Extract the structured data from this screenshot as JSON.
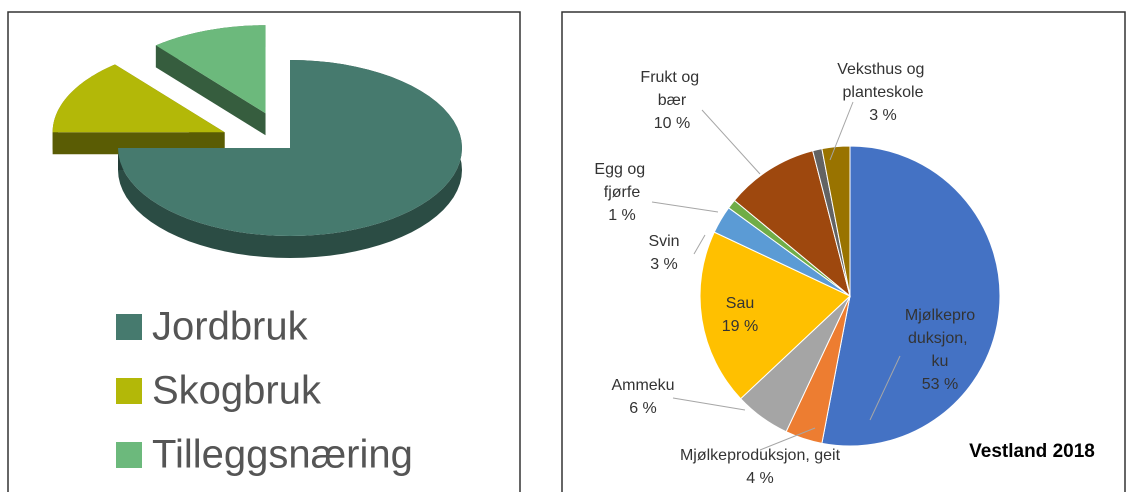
{
  "chart_data": [
    {
      "type": "pie3d",
      "categories": [
        "Jordbruk",
        "Skogbruk",
        "Tilleggsnæring"
      ],
      "values": [
        75,
        14,
        11
      ],
      "colors": [
        "#467a6e",
        "#b3b808",
        "#6cb97c"
      ],
      "legend": "bottom"
    },
    {
      "type": "pie",
      "title": "Vestland 2018",
      "categories": [
        "Mjølkeproduksjon, ku",
        "Mjølkeproduksjon, geit",
        "Ammeku",
        "Sau",
        "Svin",
        "Egg og fjørfe",
        "Frukt og bær",
        null,
        "Veksthus og planteskole"
      ],
      "values": [
        53,
        4,
        6,
        19,
        3,
        1,
        10,
        1,
        3
      ],
      "value_labels": [
        "53 %",
        "4 %",
        "6 %",
        "19 %",
        "3 %",
        "1 %",
        "10 %",
        null,
        "3 %"
      ],
      "colors": [
        "#4472c4",
        "#ed7d31",
        "#a5a5a5",
        "#ffc000",
        "#5b9bd5",
        "#70ad47",
        "#9e480e",
        "#636363",
        "#997300"
      ]
    }
  ]
}
